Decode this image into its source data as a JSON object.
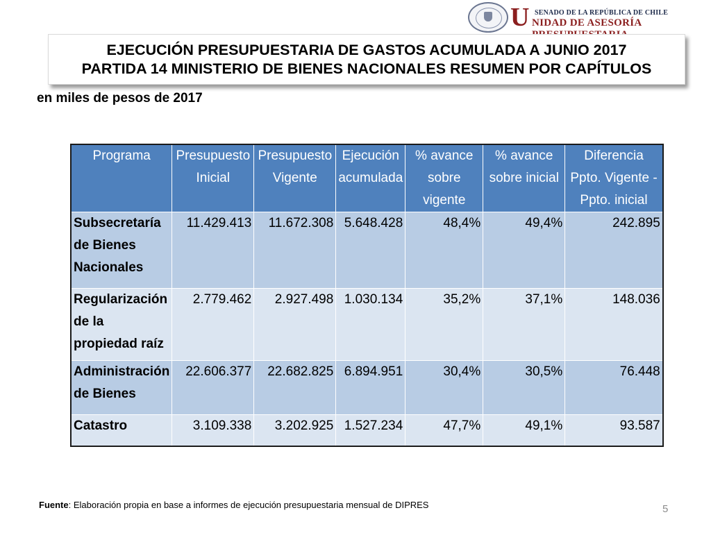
{
  "header": {
    "senate_line": "SENADO DE LA REPÚBLICA DE CHILE",
    "brand_initial": "U",
    "brand_rest": "NIDAD DE ASESORÍA PRESUPUESTARIA",
    "seal_label": "REPÚBLICA DE CHILE · SENADO"
  },
  "title": {
    "line1": "EJECUCIÓN PRESUPUESTARIA DE GASTOS ACUMULADA A JUNIO 2017",
    "line2": "PARTIDA 14 MINISTERIO DE BIENES NACIONALES RESUMEN POR CAPÍTULOS"
  },
  "subtitle": "en miles de pesos de 2017",
  "table": {
    "headers": [
      "Programa",
      "Presupuesto Inicial",
      "Presupuesto Vigente",
      "Ejecución acumulada",
      "% avance sobre vigente",
      "% avance sobre inicial",
      "Diferencia Ppto. Vigente   - Ppto. inicial"
    ],
    "rows": [
      [
        "Subsecretaría de Bienes Nacionales",
        "11.429.413",
        "11.672.308",
        "5.648.428",
        "48,4%",
        "49,4%",
        "242.895"
      ],
      [
        "Regularización de la propiedad raíz",
        "2.779.462",
        "2.927.498",
        "1.030.134",
        "35,2%",
        "37,1%",
        "148.036"
      ],
      [
        "Administración de Bienes",
        "22.606.377",
        "22.682.825",
        "6.894.951",
        "30,4%",
        "30,5%",
        "76.448"
      ],
      [
        "Catastro",
        "3.109.338",
        "3.202.925",
        "1.527.234",
        "47,7%",
        "49,1%",
        "93.587"
      ]
    ]
  },
  "source": {
    "label": "Fuente",
    "text": ": Elaboración propia en base  a informes de ejecución presupuestaria mensual de DIPRES"
  },
  "page_number": "5",
  "colors": {
    "header_fill": "#4f81bd",
    "row_fill": "#b8cce4",
    "row_alt_fill": "#dbe5f1",
    "brand_red": "#8b1f1f"
  }
}
